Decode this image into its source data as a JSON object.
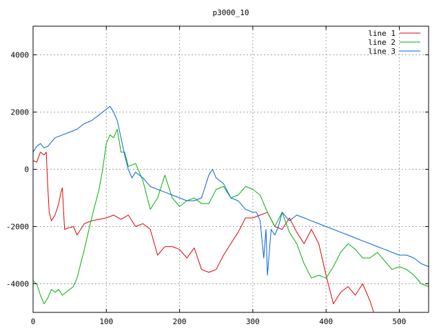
{
  "chart_data": {
    "type": "line",
    "title": "p3000_10",
    "xlabel": "",
    "ylabel": "",
    "xlim": [
      0,
      540
    ],
    "ylim": [
      -5000,
      5000
    ],
    "xticks": [
      0,
      100,
      200,
      300,
      400,
      500
    ],
    "yticks": [
      -4000,
      -2000,
      0,
      2000,
      4000
    ],
    "grid": true,
    "legend_position": "top-right",
    "series": [
      {
        "name": "line 1",
        "color": "#e00000",
        "points": [
          [
            0,
            300
          ],
          [
            5,
            250
          ],
          [
            10,
            600
          ],
          [
            15,
            500
          ],
          [
            18,
            600
          ],
          [
            20,
            -600
          ],
          [
            22,
            -1500
          ],
          [
            25,
            -1800
          ],
          [
            30,
            -1600
          ],
          [
            35,
            -1200
          ],
          [
            38,
            -800
          ],
          [
            40,
            -650
          ],
          [
            43,
            -2100
          ],
          [
            48,
            -2050
          ],
          [
            55,
            -2000
          ],
          [
            60,
            -2300
          ],
          [
            65,
            -2100
          ],
          [
            70,
            -1900
          ],
          [
            80,
            -1800
          ],
          [
            90,
            -1750
          ],
          [
            100,
            -1700
          ],
          [
            110,
            -1600
          ],
          [
            120,
            -1750
          ],
          [
            130,
            -1600
          ],
          [
            140,
            -2000
          ],
          [
            150,
            -1900
          ],
          [
            160,
            -2100
          ],
          [
            170,
            -3000
          ],
          [
            180,
            -2700
          ],
          [
            190,
            -2700
          ],
          [
            200,
            -2800
          ],
          [
            210,
            -3100
          ],
          [
            220,
            -2750
          ],
          [
            230,
            -3500
          ],
          [
            240,
            -3600
          ],
          [
            250,
            -3500
          ],
          [
            260,
            -3000
          ],
          [
            270,
            -2600
          ],
          [
            280,
            -2200
          ],
          [
            290,
            -1700
          ],
          [
            300,
            -1700
          ],
          [
            310,
            -1600
          ],
          [
            320,
            -1500
          ],
          [
            330,
            -2000
          ],
          [
            340,
            -2100
          ],
          [
            350,
            -1700
          ],
          [
            360,
            -2200
          ],
          [
            370,
            -2600
          ],
          [
            380,
            -2100
          ],
          [
            390,
            -2600
          ],
          [
            400,
            -3700
          ],
          [
            410,
            -4700
          ],
          [
            420,
            -4300
          ],
          [
            430,
            -4100
          ],
          [
            440,
            -4400
          ],
          [
            450,
            -4000
          ],
          [
            460,
            -4600
          ],
          [
            465,
            -5000
          ]
        ]
      },
      {
        "name": "line 2",
        "color": "#00b000",
        "points": [
          [
            0,
            -3900
          ],
          [
            5,
            -4000
          ],
          [
            10,
            -4400
          ],
          [
            15,
            -4700
          ],
          [
            20,
            -4500
          ],
          [
            25,
            -4200
          ],
          [
            30,
            -4300
          ],
          [
            35,
            -4200
          ],
          [
            40,
            -4400
          ],
          [
            50,
            -4200
          ],
          [
            55,
            -4100
          ],
          [
            60,
            -3800
          ],
          [
            70,
            -2800
          ],
          [
            80,
            -1700
          ],
          [
            90,
            -700
          ],
          [
            95,
            0
          ],
          [
            100,
            900
          ],
          [
            105,
            1200
          ],
          [
            110,
            1100
          ],
          [
            115,
            1400
          ],
          [
            120,
            600
          ],
          [
            125,
            600
          ],
          [
            130,
            100
          ],
          [
            140,
            200
          ],
          [
            150,
            -400
          ],
          [
            160,
            -1400
          ],
          [
            170,
            -1000
          ],
          [
            180,
            -200
          ],
          [
            190,
            -1000
          ],
          [
            200,
            -1300
          ],
          [
            210,
            -1100
          ],
          [
            220,
            -1000
          ],
          [
            230,
            -1200
          ],
          [
            240,
            -1200
          ],
          [
            250,
            -700
          ],
          [
            260,
            -600
          ],
          [
            270,
            -1000
          ],
          [
            280,
            -900
          ],
          [
            290,
            -600
          ],
          [
            300,
            -700
          ],
          [
            310,
            -900
          ],
          [
            320,
            -1500
          ],
          [
            330,
            -2000
          ],
          [
            340,
            -1500
          ],
          [
            350,
            -2200
          ],
          [
            360,
            -2600
          ],
          [
            370,
            -3300
          ],
          [
            380,
            -3800
          ],
          [
            390,
            -3700
          ],
          [
            400,
            -3800
          ],
          [
            410,
            -3400
          ],
          [
            420,
            -2900
          ],
          [
            430,
            -2600
          ],
          [
            440,
            -2800
          ],
          [
            450,
            -3100
          ],
          [
            460,
            -3100
          ],
          [
            470,
            -2900
          ],
          [
            480,
            -3200
          ],
          [
            490,
            -3500
          ],
          [
            500,
            -3400
          ],
          [
            510,
            -3500
          ],
          [
            520,
            -3700
          ],
          [
            530,
            -4000
          ],
          [
            540,
            -4100
          ]
        ]
      },
      {
        "name": "line 3",
        "color": "#0060e0",
        "points": [
          [
            0,
            600
          ],
          [
            5,
            800
          ],
          [
            10,
            900
          ],
          [
            15,
            750
          ],
          [
            20,
            800
          ],
          [
            30,
            1100
          ],
          [
            40,
            1200
          ],
          [
            50,
            1300
          ],
          [
            60,
            1400
          ],
          [
            70,
            1600
          ],
          [
            80,
            1700
          ],
          [
            90,
            1900
          ],
          [
            100,
            2100
          ],
          [
            105,
            2200
          ],
          [
            110,
            2000
          ],
          [
            115,
            1700
          ],
          [
            120,
            1100
          ],
          [
            125,
            500
          ],
          [
            130,
            0
          ],
          [
            135,
            -300
          ],
          [
            140,
            -100
          ],
          [
            150,
            -300
          ],
          [
            160,
            -600
          ],
          [
            170,
            -700
          ],
          [
            180,
            -800
          ],
          [
            190,
            -900
          ],
          [
            200,
            -1000
          ],
          [
            210,
            -1100
          ],
          [
            220,
            -1100
          ],
          [
            230,
            -1000
          ],
          [
            240,
            -200
          ],
          [
            245,
            0
          ],
          [
            250,
            -300
          ],
          [
            260,
            -500
          ],
          [
            270,
            -1000
          ],
          [
            280,
            -1100
          ],
          [
            290,
            -1400
          ],
          [
            300,
            -1500
          ],
          [
            305,
            -1500
          ],
          [
            310,
            -1800
          ],
          [
            315,
            -3100
          ],
          [
            318,
            -2100
          ],
          [
            320,
            -3700
          ],
          [
            325,
            -2100
          ],
          [
            330,
            -2300
          ],
          [
            335,
            -2000
          ],
          [
            340,
            -1500
          ],
          [
            350,
            -1800
          ],
          [
            360,
            -1600
          ],
          [
            370,
            -1700
          ],
          [
            380,
            -1800
          ],
          [
            390,
            -1900
          ],
          [
            400,
            -2000
          ],
          [
            410,
            -2100
          ],
          [
            420,
            -2200
          ],
          [
            430,
            -2300
          ],
          [
            440,
            -2400
          ],
          [
            450,
            -2500
          ],
          [
            460,
            -2600
          ],
          [
            470,
            -2700
          ],
          [
            480,
            -2800
          ],
          [
            490,
            -2900
          ],
          [
            500,
            -3000
          ],
          [
            510,
            -3000
          ],
          [
            520,
            -3100
          ],
          [
            530,
            -3300
          ],
          [
            540,
            -3400
          ]
        ]
      }
    ]
  }
}
